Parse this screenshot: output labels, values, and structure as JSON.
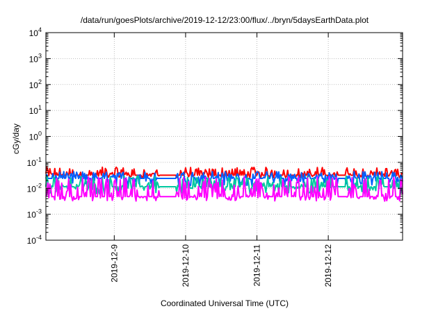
{
  "chart_data": {
    "type": "line",
    "title": "/data/run/goesPlots/archive/2019-12-12/23:00/flux/../bryn/5daysEarthData.plot",
    "xlabel": "Coordinated Universal Time (UTC)",
    "ylabel": "cGy/day",
    "yscale": "log",
    "ylim": [
      0.0001,
      10000
    ],
    "xlim": [
      "2019-12-08 01:00",
      "2019-12-13 01:00"
    ],
    "grid": true,
    "x_ticks": [
      "2019-12-9",
      "2019-12-10",
      "2019-12-11",
      "2019-12-12"
    ],
    "y_ticks": [
      {
        "value": 0.0001,
        "label": "10",
        "exp": "-4"
      },
      {
        "value": 0.001,
        "label": "10",
        "exp": "-3"
      },
      {
        "value": 0.01,
        "label": "10",
        "exp": "-2"
      },
      {
        "value": 0.1,
        "label": "10",
        "exp": "-1"
      },
      {
        "value": 1,
        "label": "10",
        "exp": "0"
      },
      {
        "value": 10,
        "label": "10",
        "exp": "1"
      },
      {
        "value": 100,
        "label": "10",
        "exp": "2"
      },
      {
        "value": 1000,
        "label": "10",
        "exp": "3"
      },
      {
        "value": 10000,
        "label": "10",
        "exp": "4"
      }
    ],
    "data_gaps": [
      [
        "2019-12-09 15:00",
        "2019-12-09 21:00"
      ],
      [
        "2019-12-12 03:00",
        "2019-12-12 06:00"
      ]
    ],
    "series": [
      {
        "color": "#ff0000",
        "base": 0.032,
        "spike_max": 0.065,
        "dip_min": 0.025
      },
      {
        "color": "#0060ff",
        "base": 0.024,
        "spike_max": 0.045,
        "dip_min": 0.012
      },
      {
        "color": "#00c8a0",
        "base": 0.0115,
        "spike_max": 0.03,
        "dip_min": 0.006
      },
      {
        "color": "#ff00ff",
        "base": 0.0048,
        "spike_max": 0.028,
        "dip_min": 0.0032
      }
    ]
  }
}
